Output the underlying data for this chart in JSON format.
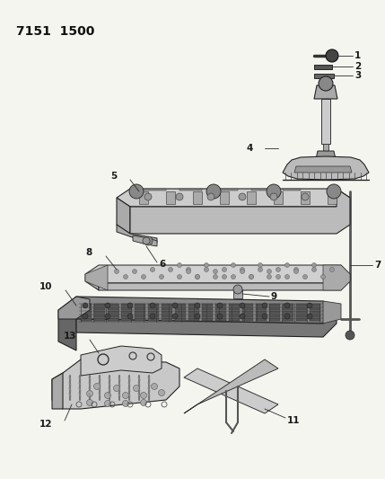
{
  "title": "7151  1500",
  "bg_color": "#f0f0f0",
  "line_color": "#2a2a2a",
  "label_color": "#1a1a1a",
  "title_fontsize": 10,
  "label_fontsize": 7.5,
  "fig_w": 4.29,
  "fig_h": 5.33,
  "dpi": 100
}
